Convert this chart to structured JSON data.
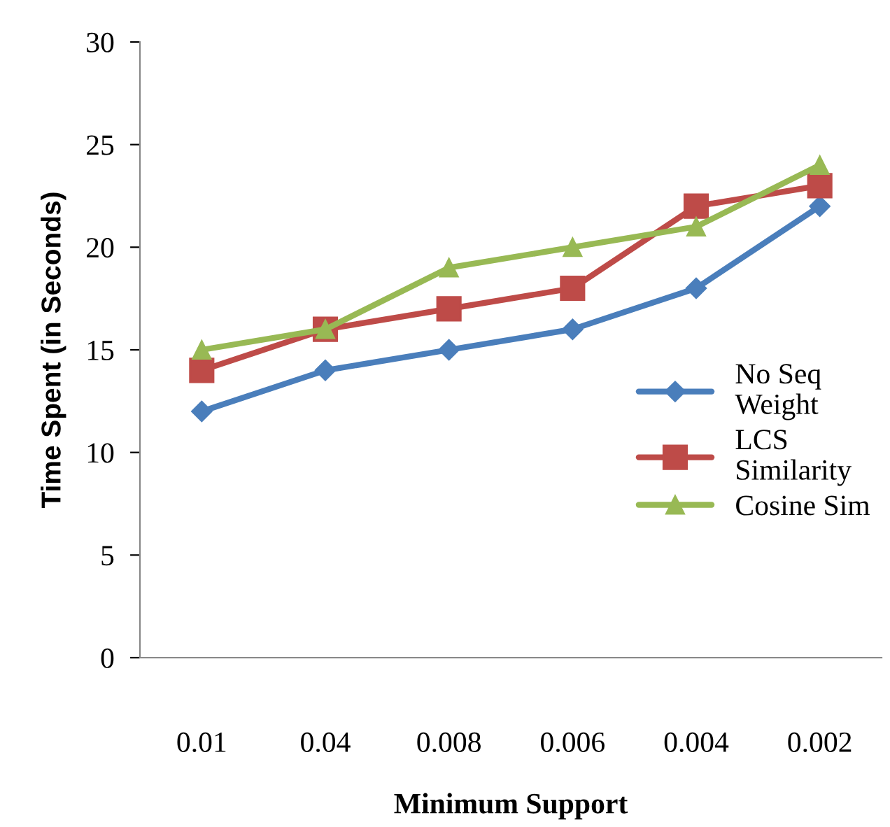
{
  "chart_data": {
    "type": "line",
    "xlabel": "Minimum Support",
    "ylabel": "Time Spent (in Seconds)",
    "categories": [
      "0.01",
      "0.04",
      "0.008",
      "0.006",
      "0.004",
      "0.002"
    ],
    "series": [
      {
        "name": "No Seq\nWeight",
        "color": "#4a7ebb",
        "marker": "diamond",
        "values": [
          12,
          14,
          15,
          16,
          18,
          22
        ]
      },
      {
        "name": "LCS\nSimilarity",
        "color": "#be4b48",
        "marker": "square",
        "values": [
          14,
          16,
          17,
          18,
          22,
          23
        ]
      },
      {
        "name": "Cosine Sim",
        "color": "#98b954",
        "marker": "triangle",
        "values": [
          15,
          16,
          19,
          20,
          21,
          24
        ]
      }
    ],
    "ylim": [
      0,
      30
    ],
    "yticks": [
      0,
      5,
      10,
      15,
      20,
      25,
      30
    ],
    "grid": false,
    "legend": "right",
    "line_style": "solid"
  }
}
